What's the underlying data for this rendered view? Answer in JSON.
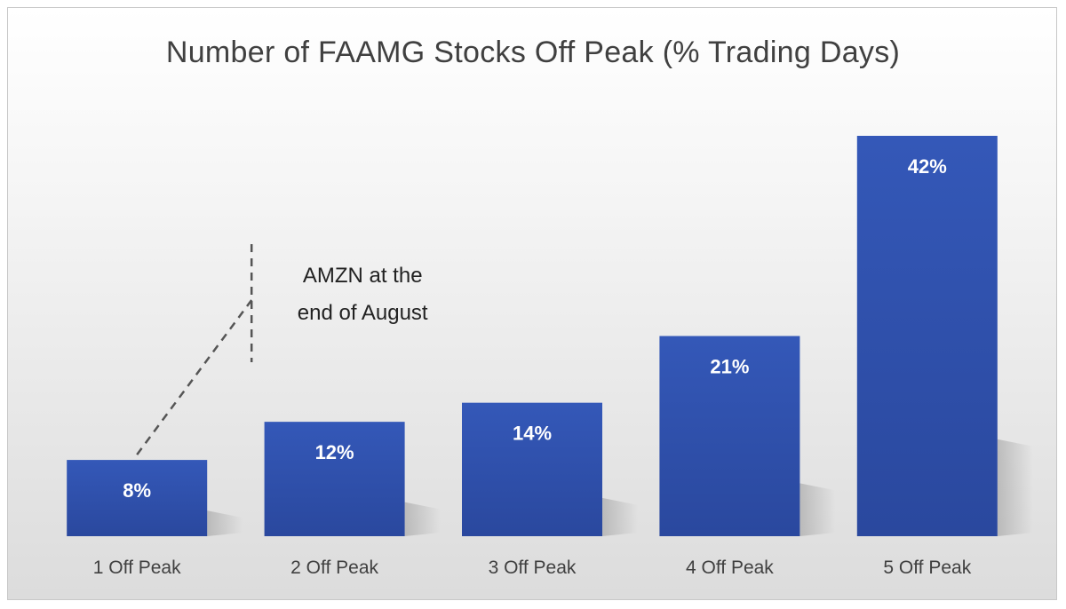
{
  "chart_data": {
    "type": "bar",
    "title": "Number of FAAMG Stocks Off Peak (% Trading Days)",
    "categories": [
      "1 Off Peak",
      "2 Off Peak",
      "3 Off Peak",
      "4 Off Peak",
      "5 Off Peak"
    ],
    "values": [
      8,
      12,
      14,
      21,
      42
    ],
    "value_labels": [
      "8%",
      "12%",
      "14%",
      "21%",
      "42%"
    ],
    "ylim": [
      0,
      42
    ],
    "grid": false,
    "bar_color": "#3355b0",
    "annotations": [
      {
        "category": "1 Off Peak",
        "lines": [
          "AMZN at the",
          "end of August"
        ]
      }
    ]
  }
}
